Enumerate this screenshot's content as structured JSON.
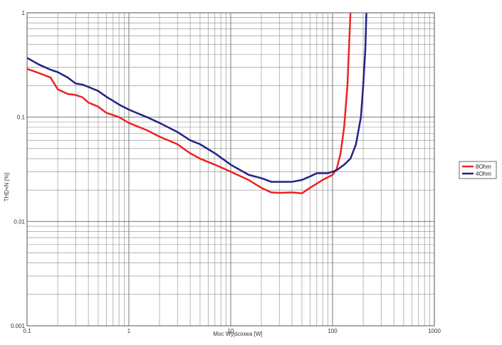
{
  "chart_data": {
    "type": "line",
    "title": "",
    "xlabel": "Moc Wyjściowa [W]",
    "ylabel": "THD+N [%]",
    "x_scale": "log",
    "y_scale": "log",
    "xlim": [
      0.1,
      1000
    ],
    "ylim": [
      0.001,
      1
    ],
    "grid": true,
    "legend_position": "right",
    "x_ticks": [
      "0.1",
      "1",
      "10",
      "100",
      "1000"
    ],
    "y_ticks": [
      "1",
      "0.1",
      "0.01",
      "0.001"
    ],
    "series": [
      {
        "name": "8Ohm",
        "color": "#ee2222",
        "points": [
          [
            0.1,
            0.29
          ],
          [
            0.13,
            0.265
          ],
          [
            0.17,
            0.24
          ],
          [
            0.2,
            0.185
          ],
          [
            0.25,
            0.167
          ],
          [
            0.3,
            0.163
          ],
          [
            0.35,
            0.155
          ],
          [
            0.4,
            0.138
          ],
          [
            0.5,
            0.126
          ],
          [
            0.6,
            0.11
          ],
          [
            0.8,
            0.1
          ],
          [
            1,
            0.088
          ],
          [
            1.5,
            0.075
          ],
          [
            2,
            0.065
          ],
          [
            3,
            0.055
          ],
          [
            4,
            0.045
          ],
          [
            5,
            0.04
          ],
          [
            7,
            0.035
          ],
          [
            10,
            0.03
          ],
          [
            15,
            0.025
          ],
          [
            20,
            0.021
          ],
          [
            25,
            0.019
          ],
          [
            30,
            0.0188
          ],
          [
            40,
            0.019
          ],
          [
            50,
            0.0186
          ],
          [
            60,
            0.021
          ],
          [
            80,
            0.025
          ],
          [
            100,
            0.028
          ],
          [
            110,
            0.032
          ],
          [
            120,
            0.045
          ],
          [
            130,
            0.08
          ],
          [
            140,
            0.2
          ],
          [
            145,
            0.45
          ],
          [
            150,
            1.0
          ]
        ]
      },
      {
        "name": "4Ohm",
        "color": "#222288",
        "points": [
          [
            0.1,
            0.37
          ],
          [
            0.13,
            0.32
          ],
          [
            0.17,
            0.285
          ],
          [
            0.2,
            0.27
          ],
          [
            0.25,
            0.24
          ],
          [
            0.3,
            0.21
          ],
          [
            0.35,
            0.205
          ],
          [
            0.4,
            0.195
          ],
          [
            0.5,
            0.178
          ],
          [
            0.6,
            0.157
          ],
          [
            0.8,
            0.132
          ],
          [
            1,
            0.118
          ],
          [
            1.5,
            0.1
          ],
          [
            2,
            0.088
          ],
          [
            3,
            0.072
          ],
          [
            4,
            0.06
          ],
          [
            5,
            0.055
          ],
          [
            7,
            0.045
          ],
          [
            10,
            0.035
          ],
          [
            15,
            0.028
          ],
          [
            20,
            0.026
          ],
          [
            25,
            0.024
          ],
          [
            30,
            0.024
          ],
          [
            40,
            0.024
          ],
          [
            50,
            0.025
          ],
          [
            60,
            0.027
          ],
          [
            70,
            0.029
          ],
          [
            90,
            0.029
          ],
          [
            110,
            0.031
          ],
          [
            130,
            0.035
          ],
          [
            150,
            0.04
          ],
          [
            170,
            0.055
          ],
          [
            190,
            0.1
          ],
          [
            200,
            0.2
          ],
          [
            210,
            0.45
          ],
          [
            215,
            1.0
          ]
        ]
      }
    ]
  }
}
